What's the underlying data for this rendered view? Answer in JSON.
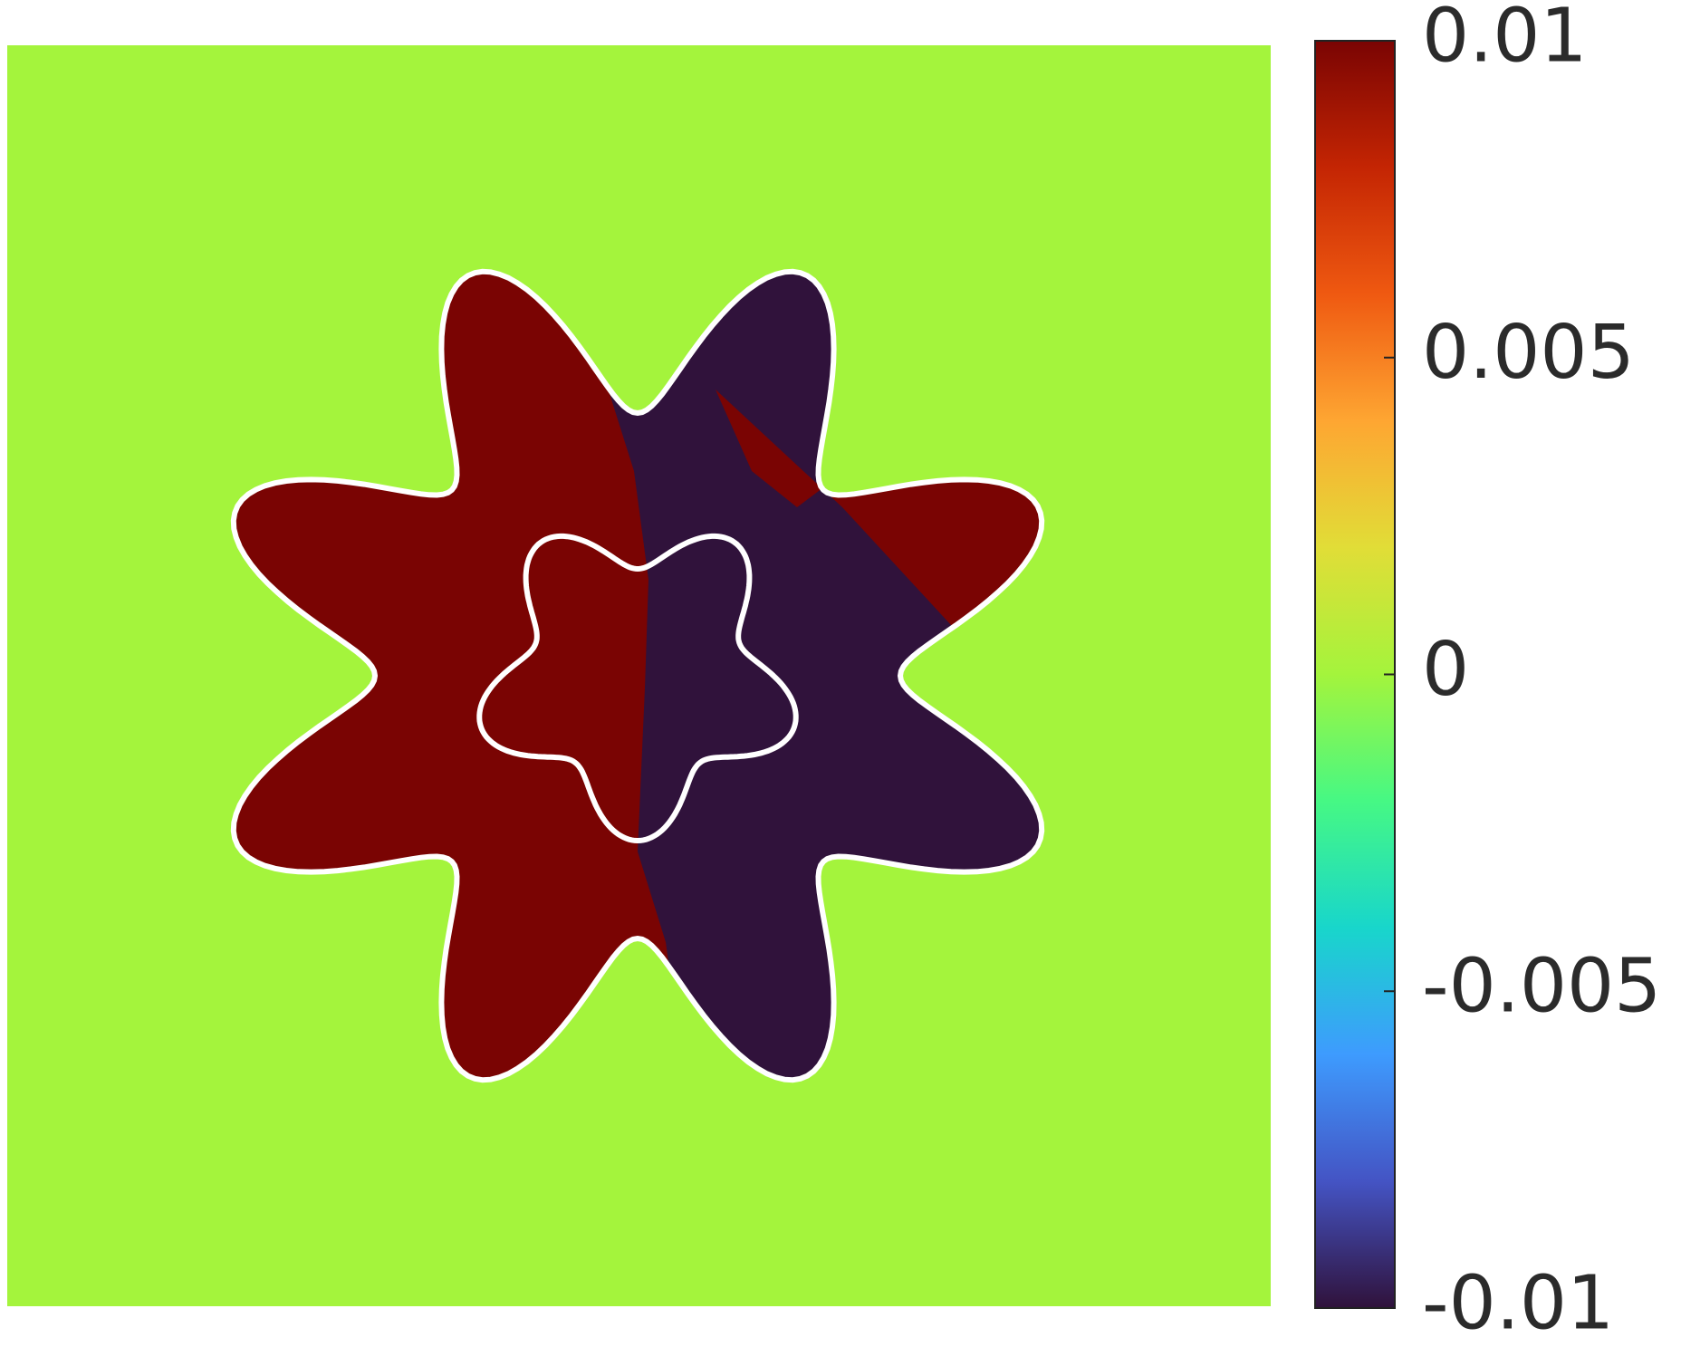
{
  "chart_data": {
    "type": "field",
    "colorbar": {
      "lim": [
        -0.01,
        0.01
      ],
      "ticks": [
        -0.01,
        -0.005,
        0,
        0.005,
        0.01
      ]
    },
    "colormap": [
      "#30123b",
      "#4454c4",
      "#3e9bfe",
      "#18d6cb",
      "#46f884",
      "#a4f43c",
      "#e1dd37",
      "#fea632",
      "#ef5911",
      "#c42503",
      "#7a0403"
    ]
  }
}
